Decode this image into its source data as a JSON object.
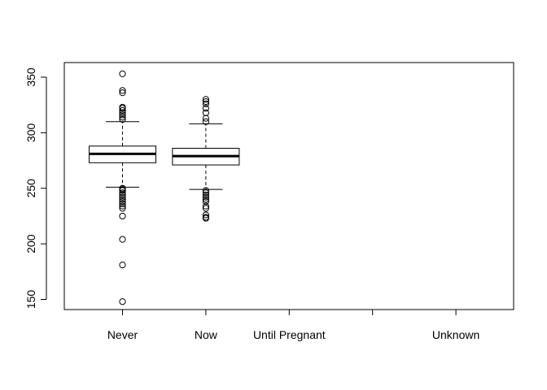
{
  "chart_data": {
    "type": "boxplot",
    "title": "",
    "xlabel": "",
    "ylabel": "",
    "ylim": [
      140,
      360
    ],
    "yticks": [
      150,
      200,
      250,
      300,
      350
    ],
    "categories": [
      "Never",
      "Now",
      "Until Pregnant",
      "",
      "Unknown"
    ],
    "boxes": [
      {
        "category": "Never",
        "whisker_low": 251,
        "q1": 273,
        "median": 281,
        "q3": 288,
        "whisker_high": 310,
        "outliers": [
          148,
          181,
          204,
          225,
          232,
          234,
          236,
          238,
          240,
          242,
          244,
          246,
          248,
          249,
          250,
          312,
          314,
          316,
          318,
          320,
          322,
          323,
          336,
          338,
          353
        ]
      },
      {
        "category": "Now",
        "whisker_low": 249,
        "q1": 271,
        "median": 279,
        "q3": 286,
        "whisker_high": 308,
        "outliers": [
          223,
          224,
          226,
          232,
          234,
          238,
          240,
          242,
          244,
          246,
          248,
          310,
          313,
          318,
          322,
          326,
          328,
          330
        ]
      }
    ]
  }
}
